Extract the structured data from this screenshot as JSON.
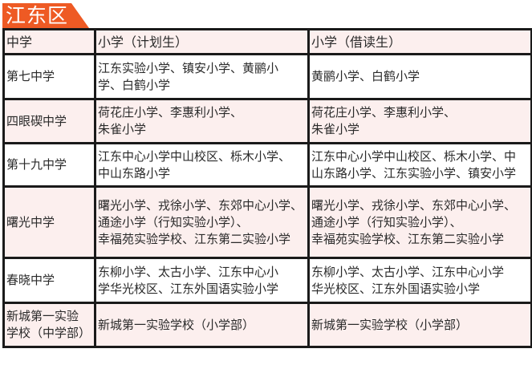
{
  "title": "江东区",
  "accent_color": "#ee5a24",
  "headers": [
    "中学",
    "小学（计划生）",
    "小学（借读生）"
  ],
  "rows": [
    {
      "middle": [
        "第七中学"
      ],
      "planned": [
        "江东实验小学、镇安小学、黄鹂小",
        "学、白鹤小学"
      ],
      "borrowed": [
        "黄鹂小学、白鹤小学"
      ]
    },
    {
      "middle": [
        "四眼碶中学"
      ],
      "planned": [
        "荷花庄小学、李惠利小学、",
        "朱雀小学"
      ],
      "borrowed": [
        "荷花庄小学、李惠利小学、",
        "朱雀小学"
      ]
    },
    {
      "middle": [
        "第十九中学"
      ],
      "planned": [
        "江东中心小学中山校区、栎木小学、",
        "中山东路小学"
      ],
      "borrowed": [
        "江东中心小学中山校区、栎木小学、中",
        "山东路小学、江东实验小学、镇安小学"
      ]
    },
    {
      "middle": [
        "曙光中学"
      ],
      "planned": [
        "曙光小学、戎徐小学、东郊中心小学、",
        "通途小学（行知实验小学）、",
        "幸福苑实验学校、江东第二实验小学"
      ],
      "borrowed": [
        "曙光小学、戎徐小学、东郊中心小学、",
        "通途小学（行知实验小学）、",
        "幸福苑实验学校、江东第二实验小学"
      ]
    },
    {
      "middle": [
        "春晓中学"
      ],
      "planned": [
        "东柳小学、太古小学、江东中心小",
        "学华光校区、江东外国语实验小学"
      ],
      "borrowed": [
        "东柳小学、太古小学、江东中心小学",
        "华光校区、江东外国语实验小学"
      ]
    },
    {
      "middle": [
        "新城第一实验",
        "学校（中学部）"
      ],
      "planned": [
        "新城第一实验学校（小学部）"
      ],
      "borrowed": [
        "新城第一实验学校（小学部）"
      ]
    }
  ]
}
